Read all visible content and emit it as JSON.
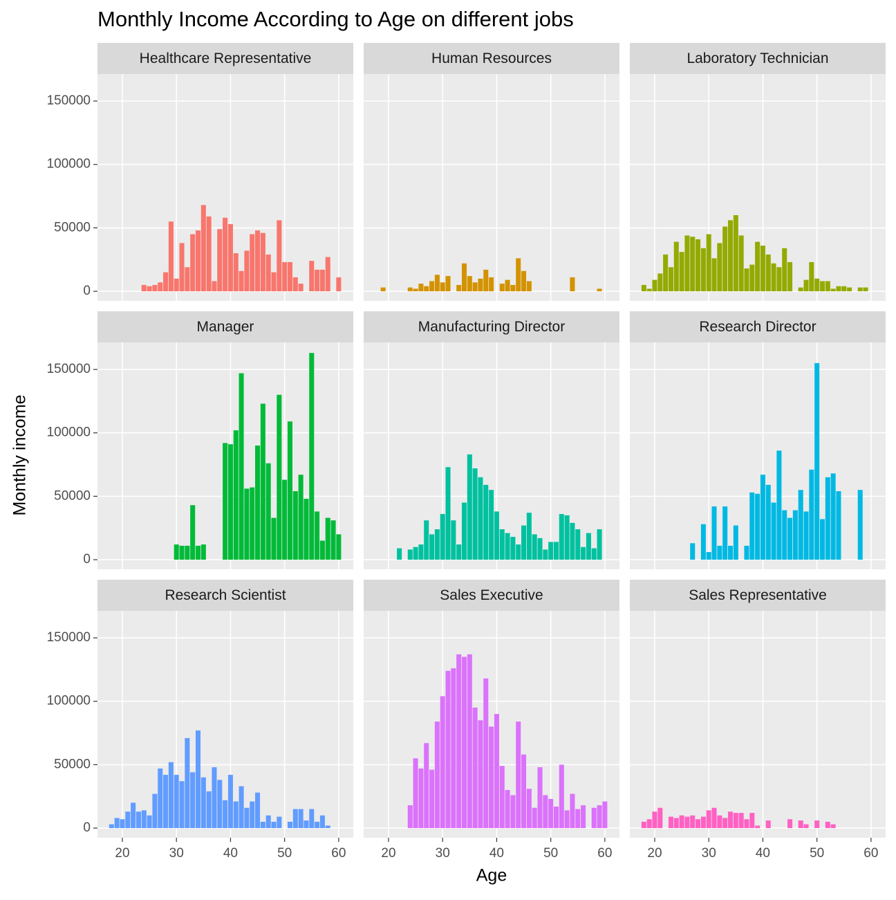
{
  "chart_data": {
    "type": "bar",
    "title": "Monthly Income According to Age on different jobs",
    "x_label": "Age",
    "y_label": "Monthly income",
    "x": [
      18,
      19,
      20,
      21,
      22,
      23,
      24,
      25,
      26,
      27,
      28,
      29,
      30,
      31,
      32,
      33,
      34,
      35,
      36,
      37,
      38,
      39,
      40,
      41,
      42,
      43,
      44,
      45,
      46,
      47,
      48,
      49,
      50,
      51,
      52,
      53,
      54,
      55,
      56,
      57,
      58,
      59,
      60
    ],
    "xlim": [
      15.4,
      62.7
    ],
    "ylim": [
      -7600,
      171300
    ],
    "xticks": [
      20,
      30,
      40,
      50,
      60
    ],
    "yticks": [
      0,
      50000,
      100000,
      150000
    ],
    "grid": true,
    "series": [
      {
        "name": "Healthcare Representative",
        "color": "#F8766D",
        "values": [
          null,
          null,
          null,
          null,
          null,
          null,
          5000,
          4000,
          5000,
          7000,
          15000,
          55000,
          10000,
          38000,
          19000,
          45000,
          48000,
          68000,
          59000,
          8000,
          49000,
          58000,
          53000,
          30000,
          16000,
          32000,
          45000,
          48000,
          46000,
          29000,
          15000,
          56000,
          23000,
          23000,
          11000,
          6000,
          null,
          24000,
          17000,
          17000,
          27000,
          null,
          11000
        ]
      },
      {
        "name": "Human Resources",
        "color": "#D39200",
        "values": [
          null,
          3000,
          null,
          null,
          null,
          null,
          3000,
          2000,
          6000,
          4000,
          8000,
          13000,
          7000,
          12000,
          null,
          5000,
          22000,
          12000,
          7000,
          10000,
          17000,
          11000,
          null,
          6000,
          9000,
          5000,
          26000,
          16000,
          8000,
          null,
          null,
          null,
          null,
          null,
          null,
          null,
          11000,
          null,
          null,
          null,
          null,
          2000,
          null
        ]
      },
      {
        "name": "Laboratory Technician",
        "color": "#93AA00",
        "values": [
          5000,
          2000,
          9000,
          14000,
          29000,
          19000,
          39000,
          31000,
          44000,
          43000,
          41000,
          34000,
          45000,
          26000,
          38000,
          51000,
          56000,
          60000,
          44000,
          18000,
          21000,
          39000,
          36000,
          29000,
          22000,
          19000,
          34000,
          23000,
          null,
          3000,
          9000,
          23000,
          10000,
          8000,
          8000,
          2000,
          4000,
          4000,
          3000,
          null,
          3000,
          3000,
          null
        ]
      },
      {
        "name": "Manager",
        "color": "#00BA38",
        "values": [
          null,
          null,
          null,
          null,
          null,
          null,
          null,
          null,
          null,
          null,
          null,
          null,
          12000,
          11000,
          11000,
          43000,
          11000,
          12000,
          null,
          null,
          null,
          92000,
          91000,
          102000,
          147000,
          56000,
          57000,
          90000,
          123000,
          76000,
          33000,
          130000,
          63000,
          109000,
          54000,
          67000,
          48000,
          163000,
          38000,
          15000,
          33000,
          31000,
          20000
        ]
      },
      {
        "name": "Manufacturing Director",
        "color": "#00C19F",
        "values": [
          null,
          null,
          null,
          null,
          9000,
          null,
          8000,
          10000,
          12000,
          31000,
          20000,
          24000,
          36000,
          73000,
          31000,
          12000,
          45000,
          83000,
          72000,
          65000,
          59000,
          55000,
          38000,
          24000,
          21000,
          18000,
          12000,
          27000,
          37000,
          20000,
          17000,
          8000,
          14000,
          14000,
          36000,
          35000,
          29000,
          24000,
          10000,
          21000,
          9000,
          24000,
          null
        ]
      },
      {
        "name": "Research Director",
        "color": "#00B9E3",
        "values": [
          null,
          null,
          null,
          null,
          null,
          null,
          null,
          null,
          null,
          13000,
          null,
          28000,
          6000,
          42000,
          11000,
          42000,
          11000,
          27000,
          null,
          11000,
          53000,
          52000,
          67000,
          59000,
          45000,
          86000,
          39000,
          33000,
          39000,
          55000,
          38000,
          71000,
          155000,
          32000,
          65000,
          68000,
          54000,
          null,
          null,
          null,
          55000,
          null,
          null
        ]
      },
      {
        "name": "Research Scientist",
        "color": "#619CFF",
        "values": [
          3000,
          8000,
          7000,
          13000,
          20000,
          13000,
          14000,
          10000,
          27000,
          47000,
          42000,
          52000,
          42000,
          37000,
          71000,
          44000,
          77000,
          40000,
          29000,
          48000,
          38000,
          22000,
          42000,
          21000,
          33000,
          16000,
          21000,
          28000,
          5000,
          10000,
          5000,
          9000,
          null,
          5000,
          15000,
          15000,
          6000,
          15000,
          5000,
          10000,
          2000,
          null,
          null
        ]
      },
      {
        "name": "Sales Executive",
        "color": "#DB72FB",
        "values": [
          null,
          null,
          null,
          null,
          null,
          null,
          18000,
          55000,
          47000,
          67000,
          46000,
          84000,
          104000,
          124000,
          126000,
          137000,
          135000,
          137000,
          95000,
          85000,
          118000,
          80000,
          90000,
          49000,
          30000,
          26000,
          84000,
          58000,
          31000,
          16000,
          48000,
          26000,
          23000,
          17000,
          50000,
          14000,
          27000,
          15000,
          18000,
          null,
          16000,
          18000,
          21000
        ]
      },
      {
        "name": "Sales Representative",
        "color": "#FF61C3",
        "values": [
          5000,
          7000,
          13000,
          16000,
          null,
          9000,
          8000,
          10000,
          9000,
          10000,
          7000,
          9000,
          14000,
          16000,
          10000,
          8000,
          13000,
          12000,
          12000,
          7000,
          12000,
          2000,
          null,
          6000,
          null,
          null,
          null,
          7000,
          null,
          6000,
          3000,
          null,
          6000,
          null,
          5000,
          3000,
          null,
          null,
          null,
          null,
          null,
          null,
          null
        ]
      }
    ]
  }
}
